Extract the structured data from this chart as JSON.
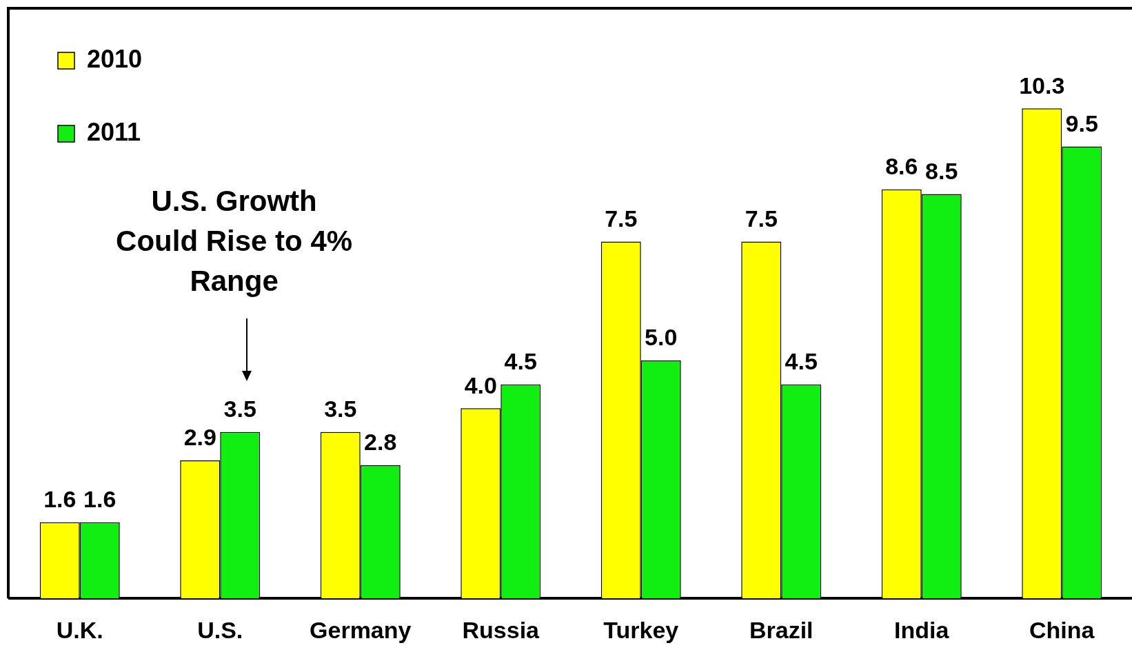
{
  "chart_data": {
    "type": "bar",
    "categories": [
      "U.K.",
      "U.S.",
      "Germany",
      "Russia",
      "Turkey",
      "Brazil",
      "India",
      "China"
    ],
    "series": [
      {
        "name": "2010",
        "color": "#ffff00",
        "values": [
          1.6,
          2.9,
          3.5,
          4.0,
          7.5,
          7.5,
          8.6,
          10.3
        ],
        "value_labels": [
          "1.6",
          "2.9",
          "3.5",
          "4.0",
          "7.5",
          "7.5",
          "8.6",
          "10.3"
        ]
      },
      {
        "name": "2011",
        "color": "#11ee11",
        "values": [
          1.6,
          3.5,
          2.8,
          4.5,
          5.0,
          4.5,
          8.5,
          9.5
        ],
        "value_labels": [
          "1.6",
          "3.5",
          "2.8",
          "4.5",
          "5.0",
          "4.5",
          "8.5",
          "9.5"
        ]
      }
    ],
    "legend": "top left",
    "grid": false,
    "annotations": [
      "U.S. Growth\nCould Rise to 4%\nRange"
    ]
  }
}
